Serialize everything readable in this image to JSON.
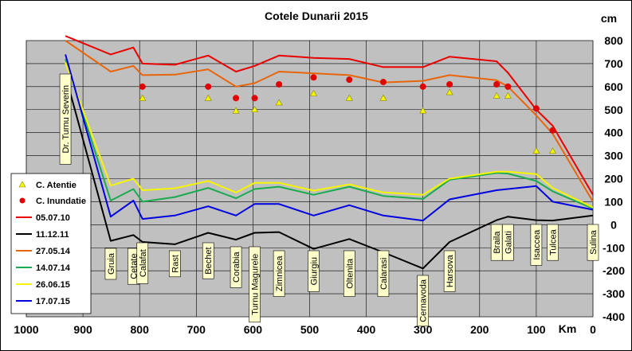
{
  "chart_data": {
    "type": "line",
    "title": "Cotele Dunarii 2015",
    "xlabel": "Km",
    "ylabel": "cm",
    "xlim": [
      1000,
      0
    ],
    "ylim": [
      -400,
      800
    ],
    "x_ticks": [
      "1000",
      "900",
      "800",
      "700",
      "600",
      "500",
      "400",
      "300",
      "200",
      "100",
      "0"
    ],
    "y_ticks": [
      "800",
      "700",
      "600",
      "500",
      "400",
      "300",
      "200",
      "100",
      "0",
      "-100",
      "-200",
      "-300",
      "-400"
    ],
    "grid": true,
    "legend_position": "left",
    "stations": [
      {
        "name": "Dr. Turnu Severin",
        "km": 931
      },
      {
        "name": "Gruia",
        "km": 851
      },
      {
        "name": "Cetate",
        "km": 811
      },
      {
        "name": "Calafat",
        "km": 795
      },
      {
        "name": "Rast",
        "km": 738
      },
      {
        "name": "Bechet",
        "km": 679
      },
      {
        "name": "Corabia",
        "km": 630
      },
      {
        "name": "Turnu Magurele",
        "km": 597
      },
      {
        "name": "Zimnicea",
        "km": 554
      },
      {
        "name": "Giurgiu",
        "km": 493
      },
      {
        "name": "Oltenita",
        "km": 430
      },
      {
        "name": "Calarasi",
        "km": 370
      },
      {
        "name": "Cernavoda",
        "km": 300
      },
      {
        "name": "Harsova",
        "km": 253
      },
      {
        "name": "Braila",
        "km": 170
      },
      {
        "name": "Galati",
        "km": 150
      },
      {
        "name": "Isaccea",
        "km": 100
      },
      {
        "name": "Tulcea",
        "km": 71
      },
      {
        "name": "Sulina",
        "km": 0
      }
    ],
    "series": [
      {
        "name": "05.07.10",
        "color": "#e80000",
        "x": [
          931,
          851,
          811,
          795,
          738,
          679,
          630,
          597,
          554,
          493,
          430,
          370,
          300,
          253,
          170,
          150,
          100,
          71,
          0
        ],
        "values": [
          820,
          740,
          770,
          700,
          695,
          735,
          665,
          690,
          735,
          725,
          720,
          685,
          685,
          730,
          710,
          660,
          500,
          430,
          130
        ]
      },
      {
        "name": "11.12.11",
        "color": "#000000",
        "x": [
          931,
          851,
          811,
          795,
          738,
          679,
          630,
          597,
          554,
          493,
          430,
          370,
          300,
          253,
          170,
          150,
          100,
          71,
          0
        ],
        "values": [
          650,
          -70,
          -45,
          -75,
          -85,
          -35,
          -65,
          -35,
          -32,
          -105,
          -62,
          -120,
          -190,
          -75,
          20,
          35,
          20,
          18,
          40
        ]
      },
      {
        "name": "27.05.14",
        "color": "#e8650a",
        "x": [
          931,
          851,
          811,
          795,
          738,
          679,
          630,
          597,
          554,
          493,
          430,
          370,
          300,
          253,
          170,
          150,
          100,
          71,
          0
        ],
        "values": [
          800,
          665,
          690,
          650,
          652,
          675,
          600,
          615,
          665,
          658,
          650,
          618,
          625,
          650,
          628,
          600,
          475,
          395,
          100
        ]
      },
      {
        "name": "14.07.14",
        "color": "#1aab50",
        "x": [
          931,
          851,
          811,
          795,
          738,
          679,
          630,
          597,
          554,
          493,
          430,
          370,
          300,
          253,
          170,
          150,
          100,
          71,
          0
        ],
        "values": [
          720,
          105,
          155,
          100,
          120,
          160,
          115,
          155,
          165,
          130,
          165,
          125,
          112,
          195,
          225,
          222,
          190,
          145,
          70
        ]
      },
      {
        "name": "26.06.15",
        "color": "#f5f500",
        "x": [
          931,
          851,
          811,
          795,
          738,
          679,
          630,
          597,
          554,
          493,
          430,
          370,
          300,
          253,
          170,
          150,
          100,
          71,
          0
        ],
        "values": [
          705,
          170,
          200,
          150,
          158,
          190,
          140,
          182,
          182,
          148,
          175,
          140,
          130,
          200,
          230,
          230,
          220,
          160,
          75
        ]
      },
      {
        "name": "17.07.15",
        "color": "#0000e0",
        "x": [
          931,
          851,
          811,
          795,
          738,
          679,
          630,
          597,
          554,
          493,
          430,
          370,
          300,
          253,
          170,
          150,
          100,
          71,
          0
        ],
        "values": [
          740,
          35,
          105,
          25,
          40,
          80,
          40,
          90,
          90,
          40,
          85,
          40,
          18,
          110,
          150,
          155,
          168,
          100,
          65
        ]
      }
    ],
    "markers": [
      {
        "name": "C. Atentie",
        "color": "#f5f500",
        "x": [
          795,
          679,
          630,
          597,
          554,
          493,
          430,
          370,
          300,
          253,
          170,
          150,
          100,
          71
        ],
        "values": [
          550,
          550,
          495,
          500,
          530,
          570,
          550,
          550,
          495,
          575,
          560,
          560,
          320,
          320
        ]
      },
      {
        "name": "C. Inundatie",
        "color": "#e00000",
        "x": [
          795,
          679,
          630,
          597,
          554,
          493,
          430,
          370,
          300,
          253,
          170,
          150,
          100,
          71
        ],
        "values": [
          600,
          600,
          550,
          550,
          610,
          640,
          630,
          620,
          600,
          610,
          610,
          600,
          505,
          410
        ]
      }
    ]
  }
}
